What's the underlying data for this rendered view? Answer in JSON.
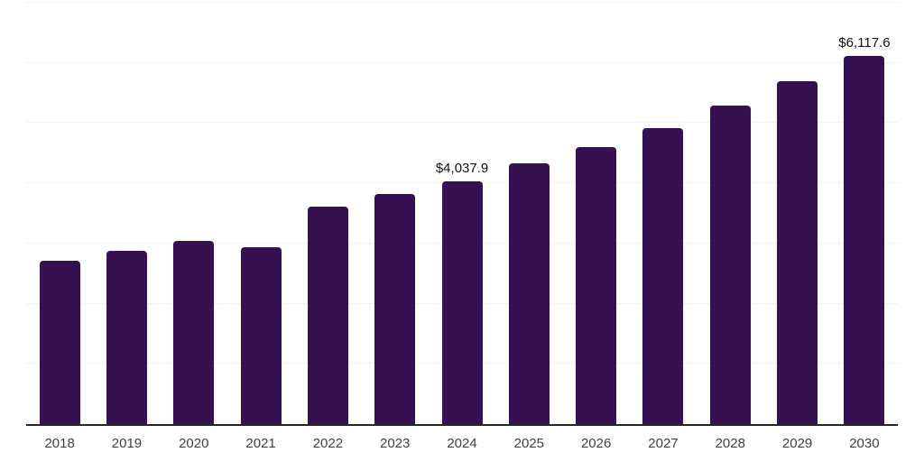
{
  "chart_data": {
    "type": "bar",
    "categories": [
      "2018",
      "2019",
      "2020",
      "2021",
      "2022",
      "2023",
      "2024",
      "2025",
      "2026",
      "2027",
      "2028",
      "2029",
      "2030"
    ],
    "values": [
      2720,
      2880,
      3050,
      2940,
      3610,
      3820,
      4037.9,
      4330,
      4600,
      4920,
      5290,
      5695,
      6117.6
    ],
    "annotations": [
      {
        "category": "2024",
        "text": "$4,037.9"
      },
      {
        "category": "2030",
        "text": "$6,117.6"
      }
    ],
    "title": "",
    "xlabel": "",
    "ylabel": "",
    "ylim": [
      0,
      7000
    ],
    "y_grid_step": 1000,
    "grid": "horizontal-only",
    "legend": "none",
    "y_tick_labels_visible": false,
    "bar_color": "#351151",
    "gridline_color": "#f2f2f2",
    "axis_line_color": "#262626",
    "x_label_color": "#404040",
    "annotation_color": "#111111",
    "background_color": "#ffffff"
  }
}
